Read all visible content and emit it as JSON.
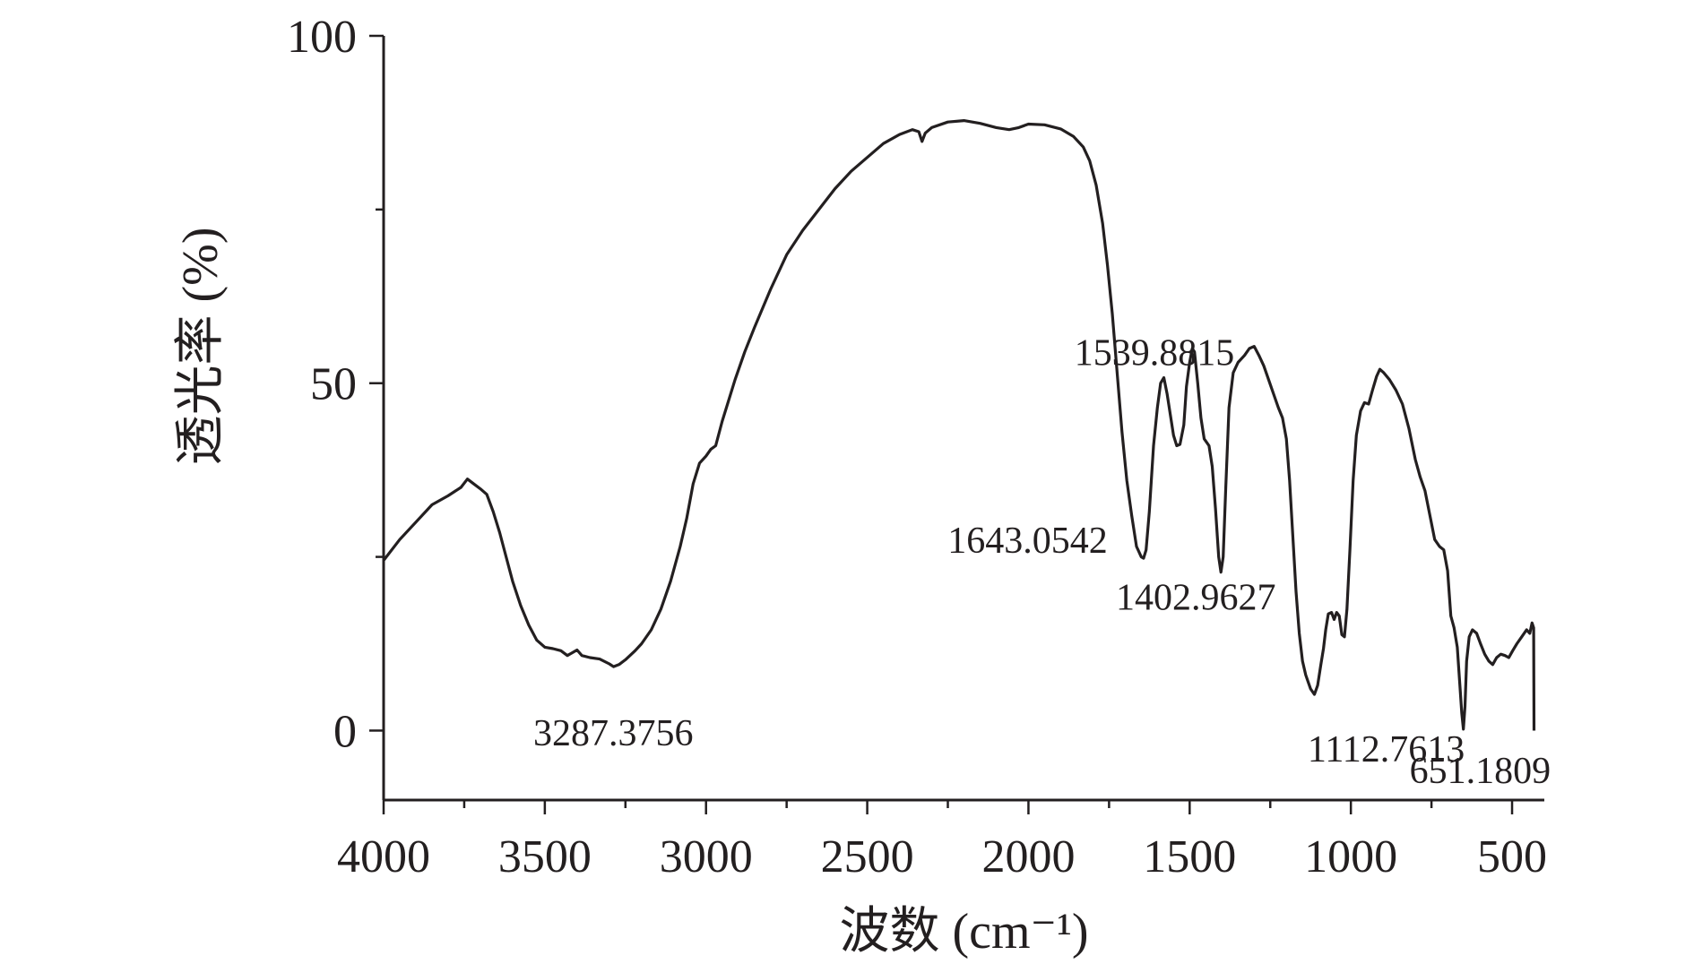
{
  "chart_data": {
    "type": "line",
    "title": "",
    "xlabel": "波数 (cm⁻¹)",
    "ylabel": "透光率 (%)",
    "xlim": [
      4000,
      400
    ],
    "ylim": [
      -10,
      100
    ],
    "x_ticks": [
      {
        "value": 4000,
        "label": "4000"
      },
      {
        "value": 3500,
        "label": "3500"
      },
      {
        "value": 3000,
        "label": "3000"
      },
      {
        "value": 2500,
        "label": "2500"
      },
      {
        "value": 2000,
        "label": "2000"
      },
      {
        "value": 1500,
        "label": "1500"
      },
      {
        "value": 1000,
        "label": "1000"
      },
      {
        "value": 500,
        "label": "500"
      }
    ],
    "y_ticks": [
      {
        "value": 0,
        "label": "0"
      },
      {
        "value": 50,
        "label": "50"
      },
      {
        "value": 100,
        "label": "100"
      }
    ],
    "annotations": [
      {
        "text": "3287.3756",
        "x": 3287.3756,
        "y": 9.2
      },
      {
        "text": "1643.0542",
        "x": 1643.0542,
        "y": 24.8
      },
      {
        "text": "1539.8815",
        "x": 1539.8815,
        "y": 41.0
      },
      {
        "text": "1402.9627",
        "x": 1402.9627,
        "y": 22.8
      },
      {
        "text": "1112.7613",
        "x": 1112.7613,
        "y": 5.2
      },
      {
        "text": "651.1809",
        "x": 651.1809,
        "y": 0.2
      }
    ],
    "series": [
      {
        "points": [
          [
            4000,
            24.5
          ],
          [
            3950,
            27.5
          ],
          [
            3900,
            30.0
          ],
          [
            3850,
            32.5
          ],
          [
            3800,
            33.8
          ],
          [
            3760,
            35.0
          ],
          [
            3740,
            36.2
          ],
          [
            3720,
            35.5
          ],
          [
            3700,
            34.8
          ],
          [
            3680,
            34.0
          ],
          [
            3660,
            31.5
          ],
          [
            3640,
            28.5
          ],
          [
            3620,
            25.0
          ],
          [
            3600,
            21.5
          ],
          [
            3575,
            18.0
          ],
          [
            3550,
            15.2
          ],
          [
            3525,
            13.0
          ],
          [
            3500,
            12.0
          ],
          [
            3475,
            11.8
          ],
          [
            3450,
            11.5
          ],
          [
            3430,
            10.8
          ],
          [
            3415,
            11.2
          ],
          [
            3400,
            11.6
          ],
          [
            3385,
            10.8
          ],
          [
            3360,
            10.5
          ],
          [
            3330,
            10.3
          ],
          [
            3300,
            9.6
          ],
          [
            3287,
            9.2
          ],
          [
            3270,
            9.5
          ],
          [
            3250,
            10.2
          ],
          [
            3220,
            11.5
          ],
          [
            3200,
            12.5
          ],
          [
            3170,
            14.5
          ],
          [
            3140,
            17.5
          ],
          [
            3110,
            21.5
          ],
          [
            3080,
            26.5
          ],
          [
            3060,
            30.5
          ],
          [
            3040,
            35.5
          ],
          [
            3020,
            38.5
          ],
          [
            3000,
            39.5
          ],
          [
            2985,
            40.5
          ],
          [
            2970,
            41.0
          ],
          [
            2950,
            44.5
          ],
          [
            2930,
            47.5
          ],
          [
            2910,
            50.5
          ],
          [
            2880,
            54.5
          ],
          [
            2850,
            58.0
          ],
          [
            2800,
            63.5
          ],
          [
            2750,
            68.5
          ],
          [
            2700,
            72.0
          ],
          [
            2650,
            75.0
          ],
          [
            2600,
            78.0
          ],
          [
            2550,
            80.5
          ],
          [
            2500,
            82.5
          ],
          [
            2450,
            84.5
          ],
          [
            2400,
            85.8
          ],
          [
            2360,
            86.5
          ],
          [
            2340,
            86.2
          ],
          [
            2330,
            84.8
          ],
          [
            2320,
            86.0
          ],
          [
            2300,
            86.8
          ],
          [
            2250,
            87.6
          ],
          [
            2200,
            87.8
          ],
          [
            2150,
            87.4
          ],
          [
            2100,
            86.8
          ],
          [
            2060,
            86.5
          ],
          [
            2030,
            86.8
          ],
          [
            2000,
            87.3
          ],
          [
            1950,
            87.2
          ],
          [
            1900,
            86.6
          ],
          [
            1860,
            85.5
          ],
          [
            1830,
            84.0
          ],
          [
            1810,
            82.0
          ],
          [
            1790,
            78.5
          ],
          [
            1770,
            73.0
          ],
          [
            1755,
            67.0
          ],
          [
            1740,
            60.0
          ],
          [
            1725,
            51.5
          ],
          [
            1710,
            43.0
          ],
          [
            1695,
            36.0
          ],
          [
            1680,
            31.0
          ],
          [
            1665,
            26.5
          ],
          [
            1650,
            25.0
          ],
          [
            1643,
            24.8
          ],
          [
            1635,
            26.0
          ],
          [
            1625,
            31.5
          ],
          [
            1612,
            41.0
          ],
          [
            1600,
            46.5
          ],
          [
            1590,
            50.0
          ],
          [
            1580,
            50.8
          ],
          [
            1570,
            48.5
          ],
          [
            1560,
            45.5
          ],
          [
            1550,
            42.5
          ],
          [
            1540,
            41.0
          ],
          [
            1530,
            41.2
          ],
          [
            1518,
            44.0
          ],
          [
            1510,
            49.5
          ],
          [
            1500,
            53.0
          ],
          [
            1492,
            55.0
          ],
          [
            1485,
            54.5
          ],
          [
            1475,
            50.0
          ],
          [
            1465,
            45.0
          ],
          [
            1455,
            42.0
          ],
          [
            1440,
            41.0
          ],
          [
            1430,
            38.0
          ],
          [
            1420,
            32.0
          ],
          [
            1410,
            25.0
          ],
          [
            1403,
            22.8
          ],
          [
            1396,
            25.0
          ],
          [
            1388,
            35.0
          ],
          [
            1378,
            46.5
          ],
          [
            1365,
            51.5
          ],
          [
            1350,
            53.0
          ],
          [
            1330,
            54.0
          ],
          [
            1315,
            55.0
          ],
          [
            1300,
            55.3
          ],
          [
            1285,
            54.0
          ],
          [
            1270,
            52.5
          ],
          [
            1255,
            50.5
          ],
          [
            1240,
            48.5
          ],
          [
            1225,
            46.5
          ],
          [
            1212,
            45.0
          ],
          [
            1200,
            42.0
          ],
          [
            1190,
            36.0
          ],
          [
            1180,
            28.0
          ],
          [
            1170,
            20.0
          ],
          [
            1160,
            14.0
          ],
          [
            1150,
            10.0
          ],
          [
            1140,
            8.0
          ],
          [
            1125,
            6.0
          ],
          [
            1113,
            5.2
          ],
          [
            1103,
            6.5
          ],
          [
            1093,
            9.5
          ],
          [
            1085,
            11.8
          ],
          [
            1078,
            14.5
          ],
          [
            1070,
            16.8
          ],
          [
            1060,
            17.0
          ],
          [
            1052,
            16.0
          ],
          [
            1044,
            17.0
          ],
          [
            1036,
            16.5
          ],
          [
            1028,
            13.8
          ],
          [
            1020,
            13.5
          ],
          [
            1012,
            17.5
          ],
          [
            1003,
            26.0
          ],
          [
            993,
            36.0
          ],
          [
            983,
            42.5
          ],
          [
            970,
            46.0
          ],
          [
            958,
            47.2
          ],
          [
            945,
            47.0
          ],
          [
            933,
            49.0
          ],
          [
            920,
            51.0
          ],
          [
            910,
            52.0
          ],
          [
            898,
            51.5
          ],
          [
            880,
            50.5
          ],
          [
            860,
            49.0
          ],
          [
            840,
            47.0
          ],
          [
            820,
            43.5
          ],
          [
            800,
            39.0
          ],
          [
            785,
            36.5
          ],
          [
            770,
            34.5
          ],
          [
            755,
            31.0
          ],
          [
            740,
            27.5
          ],
          [
            725,
            26.5
          ],
          [
            712,
            26.0
          ],
          [
            700,
            23.0
          ],
          [
            690,
            16.5
          ],
          [
            680,
            14.8
          ],
          [
            670,
            12.0
          ],
          [
            662,
            6.5
          ],
          [
            656,
            2.5
          ],
          [
            651,
            0.2
          ],
          [
            646,
            3.5
          ],
          [
            641,
            10.0
          ],
          [
            633,
            13.5
          ],
          [
            623,
            14.5
          ],
          [
            610,
            14.0
          ],
          [
            598,
            12.5
          ],
          [
            585,
            11.0
          ],
          [
            572,
            10.0
          ],
          [
            560,
            9.5
          ],
          [
            548,
            10.5
          ],
          [
            535,
            11.0
          ],
          [
            522,
            10.8
          ],
          [
            510,
            10.5
          ],
          [
            498,
            11.5
          ],
          [
            485,
            12.5
          ],
          [
            470,
            13.5
          ],
          [
            455,
            14.5
          ],
          [
            445,
            14.0
          ],
          [
            438,
            15.5
          ],
          [
            433,
            14.8
          ],
          [
            432,
            0.0
          ]
        ]
      }
    ]
  }
}
